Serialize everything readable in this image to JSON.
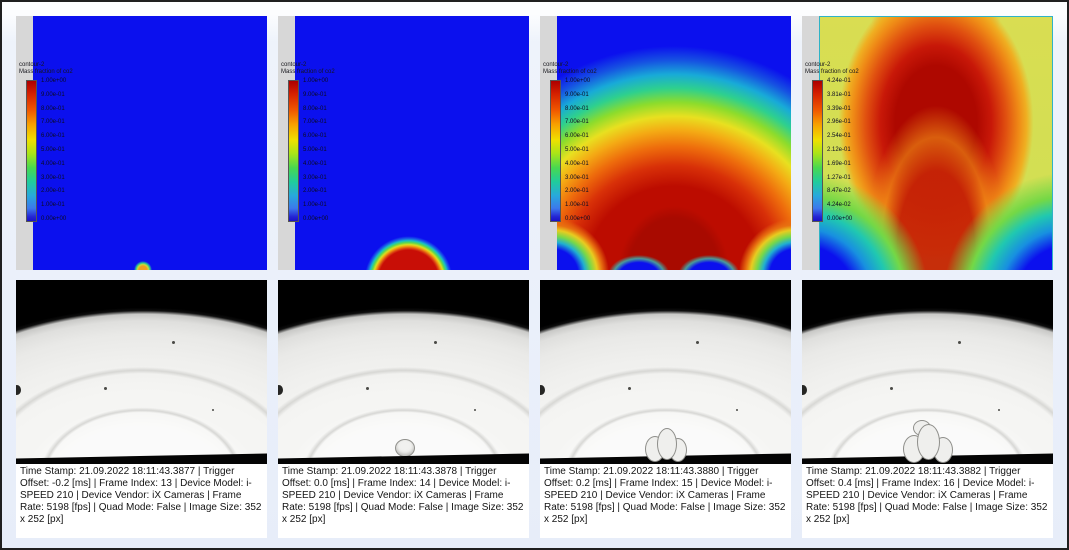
{
  "figure": {
    "description": "CFD CO2 mass-fraction contour sequence (top) compared with high-speed camera frames (bottom)",
    "background": "#e7edf9",
    "border_color": "#1f1f1f"
  },
  "colors": {
    "contour_blue": "#0b10ee",
    "contour_red": "#c01008",
    "panel4_background": "#cfe054",
    "panel4_border": "#2fb3c6",
    "colorbar_stops": [
      "#ae0000",
      "#f05800",
      "#f8a000",
      "#f0e000",
      "#a8e418",
      "#48d850",
      "#20cc9c",
      "#28a8dc",
      "#3c78ec",
      "#1a12c6"
    ],
    "camera_background": "#000000",
    "camera_dome": "#f0f0ee"
  },
  "contour_panels": [
    {
      "title_line1": "contour-2",
      "title_line2": "Mass fraction of co2",
      "ticks": [
        "1.00e+00",
        "9.00e-01",
        "8.00e-01",
        "7.00e-01",
        "6.00e-01",
        "5.00e-01",
        "4.00e-01",
        "3.00e-01",
        "2.00e-01",
        "1.00e-01",
        "0.00e+00"
      ]
    },
    {
      "title_line1": "contour-2",
      "title_line2": "Mass fraction of co2",
      "ticks": [
        "1.00e+00",
        "9.00e-01",
        "8.00e-01",
        "7.00e-01",
        "6.00e-01",
        "5.00e-01",
        "4.00e-01",
        "3.00e-01",
        "2.00e-01",
        "1.00e-01",
        "0.00e+00"
      ]
    },
    {
      "title_line1": "contour-2",
      "title_line2": "Mass fraction of co2",
      "ticks": [
        "1.00e+00",
        "9.00e-01",
        "8.00e-01",
        "7.00e-01",
        "6.00e-01",
        "5.00e-01",
        "4.00e-01",
        "3.00e-01",
        "2.00e-01",
        "1.00e-01",
        "0.00e+00"
      ]
    },
    {
      "title_line1": "contour-2",
      "title_line2": "Mass fraction of co2",
      "ticks": [
        "4.24e-01",
        "3.81e-01",
        "3.39e-01",
        "2.96e-01",
        "2.54e-01",
        "2.12e-01",
        "1.69e-01",
        "1.27e-01",
        "8.47e-02",
        "4.24e-02",
        "0.00e+00"
      ]
    }
  ],
  "camera_panels": [
    {
      "time_stamp": "21.09.2022 18:11:43.3877",
      "trigger_offset": "-0.2 [ms]",
      "frame_index": "13",
      "device_model": "i-SPEED 210",
      "device_vendor": "iX Cameras",
      "frame_rate": "5198 [fps]",
      "quad_mode": "False",
      "image_size": "352 x 252 [px]",
      "caption": "Time Stamp: 21.09.2022 18:11:43.3877  |  Trigger Offset: -0.2 [ms]  |  Frame Index: 13  |  Device Model: i-SPEED 210  |  Device Vendor: iX Cameras  |  Frame Rate: 5198 [fps]  |  Quad Mode: False  |  Image Size: 352 x 252 [px]"
    },
    {
      "time_stamp": "21.09.2022 18:11:43.3878",
      "trigger_offset": "0.0 [ms]",
      "frame_index": "14",
      "device_model": "i-SPEED 210",
      "device_vendor": "iX Cameras",
      "frame_rate": "5198 [fps]",
      "quad_mode": "False",
      "image_size": "352 x 252 [px]",
      "caption": "Time Stamp: 21.09.2022 18:11:43.3878  |  Trigger Offset: 0.0 [ms]  |  Frame Index: 14  |  Device Model: i-SPEED 210  |  Device Vendor: iX Cameras  |  Frame Rate: 5198 [fps]  |  Quad Mode: False  |  Image Size: 352 x 252 [px]"
    },
    {
      "time_stamp": "21.09.2022 18:11:43.3880",
      "trigger_offset": "0.2 [ms]",
      "frame_index": "15",
      "device_model": "i-SPEED 210",
      "device_vendor": "iX Cameras",
      "frame_rate": "5198 [fps]",
      "quad_mode": "False",
      "image_size": "352 x 252 [px]",
      "caption": "Time Stamp: 21.09.2022 18:11:43.3880  |  Trigger Offset: 0.2 [ms]  |  Frame Index: 15  |  Device Model: i-SPEED 210  |  Device Vendor: iX Cameras  |  Frame Rate: 5198 [fps]  |  Quad Mode: False  |  Image Size: 352 x 252 [px]"
    },
    {
      "time_stamp": "21.09.2022 18:11:43.3882",
      "trigger_offset": "0.4 [ms]",
      "frame_index": "16",
      "device_model": "i-SPEED 210",
      "device_vendor": "iX Cameras",
      "frame_rate": "5198 [fps]",
      "quad_mode": "False",
      "image_size": "352 x 252 [px]",
      "caption": "Time Stamp: 21.09.2022 18:11:43.3882  |  Trigger Offset: 0.4 [ms]  |  Frame Index: 16  |  Device Model: i-SPEED 210  |  Device Vendor: iX Cameras  |  Frame Rate: 5198 [fps]  |  Quad Mode: False  |  Image Size: 352 x 252 [px]"
    }
  ]
}
